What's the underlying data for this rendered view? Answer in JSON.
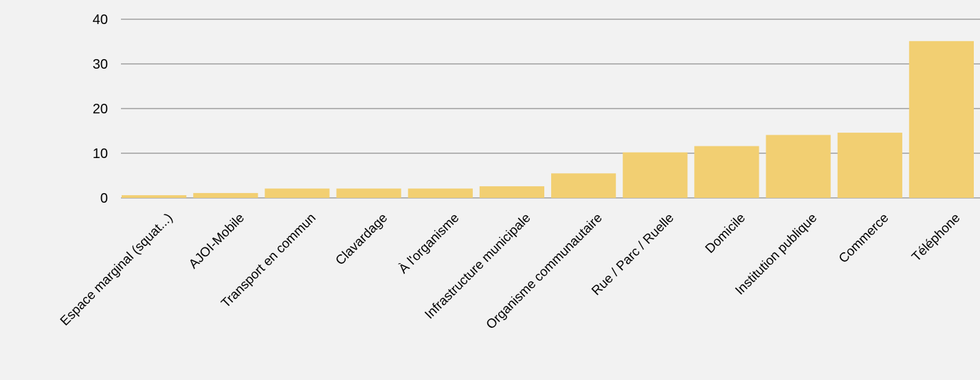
{
  "chart_data": {
    "type": "bar",
    "categories": [
      "Espace marginal (squat...)",
      "AJOI-Mobile",
      "Transport en commun",
      "Clavardage",
      "À l'organisme",
      "Infrastructure municipale",
      "Organisme communautaire",
      "Rue / Parc / Ruelle",
      "Domicile",
      "Institution publique",
      "Commerce",
      "Téléphone"
    ],
    "values": [
      0.6,
      1.1,
      2.1,
      2.1,
      2.1,
      2.6,
      5.5,
      10.2,
      11.6,
      14.1,
      14.6,
      35.1
    ],
    "yticks": [
      "0",
      "10",
      "20",
      "30",
      "40"
    ],
    "ylim": [
      0,
      40
    ],
    "grid": true,
    "colors": {
      "bar": "#f2cf72",
      "grid": "#b3b3b3",
      "background": "#f2f2f2"
    }
  }
}
